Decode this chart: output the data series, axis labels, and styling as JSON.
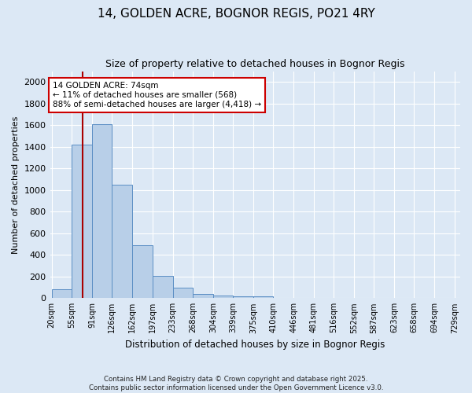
{
  "title": "14, GOLDEN ACRE, BOGNOR REGIS, PO21 4RY",
  "subtitle": "Size of property relative to detached houses in Bognor Regis",
  "xlabel": "Distribution of detached houses by size in Bognor Regis",
  "ylabel": "Number of detached properties",
  "bin_labels": [
    "20sqm",
    "55sqm",
    "91sqm",
    "126sqm",
    "162sqm",
    "197sqm",
    "233sqm",
    "268sqm",
    "304sqm",
    "339sqm",
    "375sqm",
    "410sqm",
    "446sqm",
    "481sqm",
    "516sqm",
    "552sqm",
    "587sqm",
    "623sqm",
    "658sqm",
    "694sqm",
    "729sqm"
  ],
  "bin_edges": [
    20,
    55,
    91,
    126,
    162,
    197,
    233,
    268,
    304,
    339,
    375,
    410,
    446,
    481,
    516,
    552,
    587,
    623,
    658,
    694,
    729
  ],
  "bar_heights": [
    80,
    1420,
    1610,
    1050,
    490,
    205,
    100,
    35,
    22,
    15,
    15,
    0,
    0,
    0,
    0,
    0,
    0,
    0,
    0,
    0
  ],
  "bar_color": "#b8cfe8",
  "bar_edge_color": "#5b8ec4",
  "property_size": 74,
  "property_line_color": "#aa0000",
  "annotation_text": "14 GOLDEN ACRE: 74sqm\n← 11% of detached houses are smaller (568)\n88% of semi-detached houses are larger (4,418) →",
  "annotation_box_color": "#ffffff",
  "annotation_box_edge_color": "#cc0000",
  "bg_color": "#dce8f5",
  "grid_color": "#ffffff",
  "footer_text": "Contains HM Land Registry data © Crown copyright and database right 2025.\nContains public sector information licensed under the Open Government Licence v3.0.",
  "ylim": [
    0,
    2100
  ],
  "yticks": [
    0,
    200,
    400,
    600,
    800,
    1000,
    1200,
    1400,
    1600,
    1800,
    2000
  ]
}
